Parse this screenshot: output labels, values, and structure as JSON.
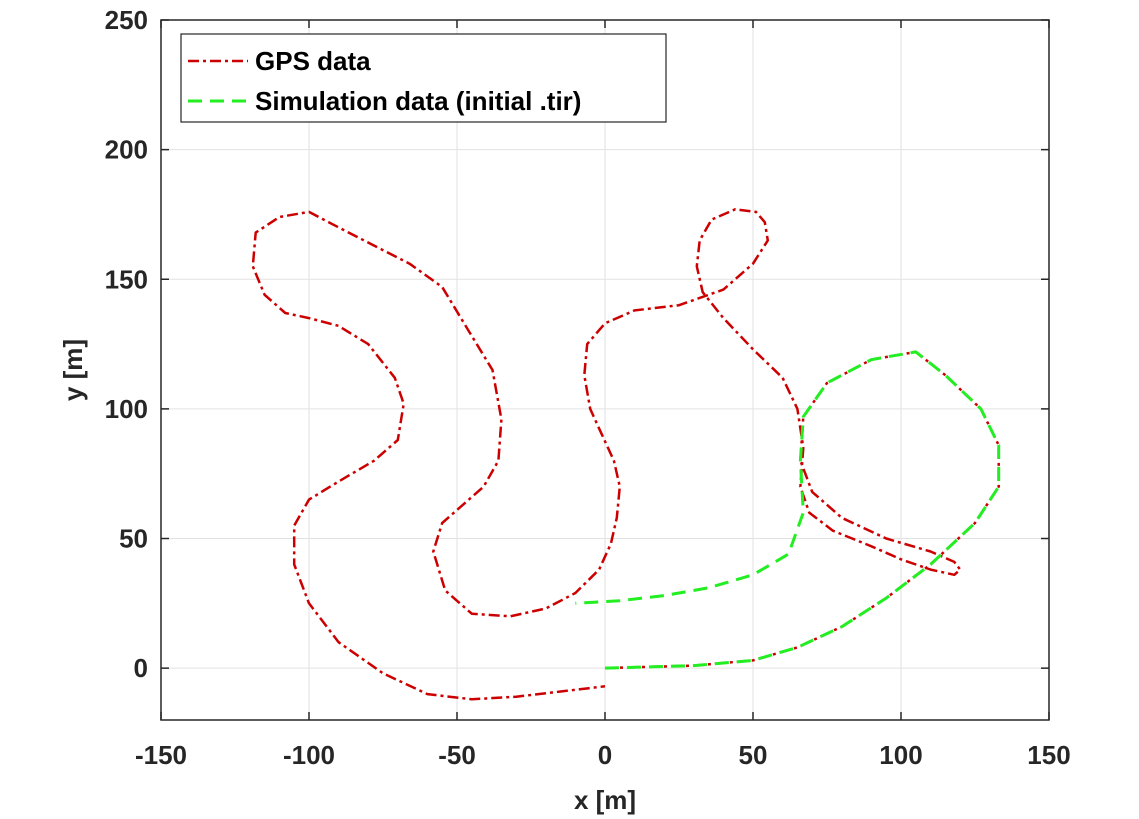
{
  "chart_data": {
    "type": "line",
    "xlabel": "x [m]",
    "ylabel": "y [m]",
    "xlim": [
      -150,
      150
    ],
    "ylim": [
      -20,
      250
    ],
    "xticks": [
      -150,
      -100,
      -50,
      0,
      50,
      100,
      150
    ],
    "yticks": [
      0,
      50,
      100,
      150,
      200,
      250
    ],
    "grid": true,
    "legend_position": "top-left",
    "series": [
      {
        "name": "GPS data",
        "color": "#cc0000",
        "style": "dash-dot",
        "x": [
          0,
          30,
          50,
          65,
          80,
          95,
          110,
          125,
          133,
          133,
          127,
          115,
          105,
          90,
          75,
          67,
          66,
          70,
          80,
          95,
          110,
          118,
          120,
          118,
          110,
          100,
          90,
          77,
          69,
          66,
          67,
          65,
          60,
          50,
          40,
          33,
          31,
          32,
          36,
          44,
          51,
          54,
          55,
          50,
          40,
          25,
          10,
          0,
          -6,
          -7,
          -5,
          -1,
          3,
          5,
          4,
          2,
          -2,
          -10,
          -20,
          -32,
          -45,
          -54,
          -58,
          -55,
          -48,
          -41,
          -36,
          -35,
          -38,
          -46,
          -55,
          -66,
          -78,
          -90,
          -100,
          -110,
          -118,
          -119,
          -115,
          -108,
          -100,
          -90,
          -80,
          -71,
          -68,
          -70,
          -78,
          -90,
          -100,
          -105,
          -105,
          -100,
          -90,
          -75,
          -60,
          -45,
          -30,
          -15,
          0
        ],
        "y": [
          0,
          1,
          3,
          8,
          16,
          27,
          40,
          56,
          70,
          86,
          100,
          113,
          122,
          119,
          110,
          97,
          80,
          68,
          58,
          50,
          45,
          41,
          38,
          36,
          38,
          42,
          47,
          53,
          60,
          70,
          85,
          100,
          112,
          123,
          135,
          145,
          155,
          165,
          173,
          177,
          176,
          172,
          165,
          156,
          146,
          140,
          138,
          133,
          125,
          113,
          100,
          90,
          80,
          70,
          58,
          48,
          38,
          29,
          23,
          20,
          21,
          30,
          45,
          56,
          63,
          70,
          80,
          96,
          115,
          130,
          147,
          156,
          163,
          170,
          176,
          174,
          168,
          155,
          144,
          137,
          135,
          132,
          125,
          112,
          102,
          88,
          80,
          72,
          65,
          55,
          40,
          25,
          10,
          -2,
          -10,
          -12,
          -11,
          -9,
          -7
        ]
      },
      {
        "name": "Simulation data (initial .tir)",
        "color": "#22ee22",
        "style": "dashed",
        "x": [
          0,
          30,
          50,
          65,
          80,
          95,
          110,
          125,
          133,
          133,
          127,
          115,
          105,
          90,
          75,
          67,
          66,
          67,
          62,
          50,
          35,
          20,
          5,
          -10
        ],
        "y": [
          0,
          1,
          3,
          8,
          16,
          27,
          40,
          56,
          70,
          86,
          100,
          113,
          122,
          119,
          110,
          97,
          80,
          60,
          44,
          36,
          31,
          28,
          26,
          25
        ]
      }
    ]
  }
}
